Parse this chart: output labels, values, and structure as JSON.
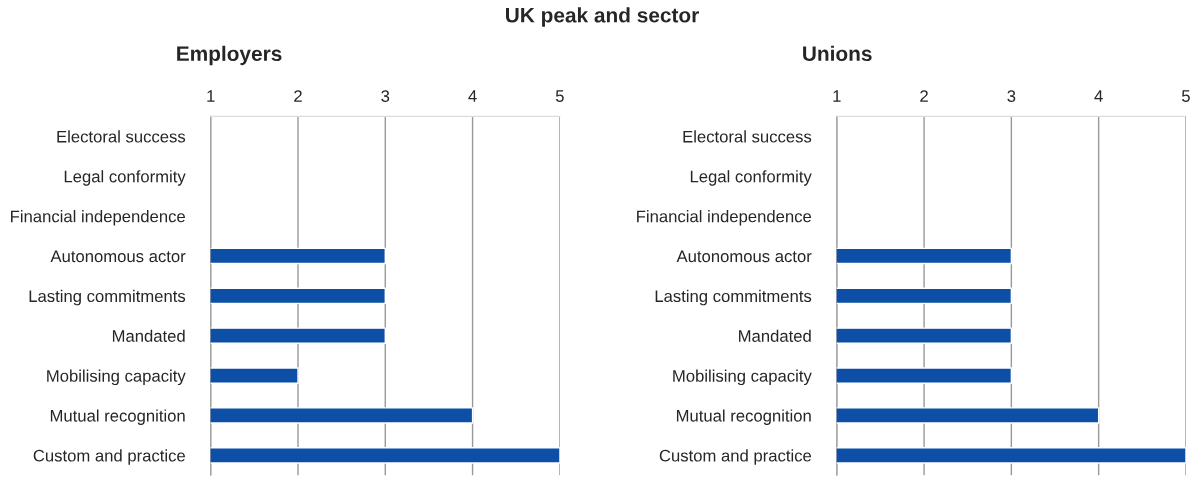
{
  "chart_data": [
    {
      "type": "bar",
      "orientation": "horizontal",
      "title": "Employers",
      "subtitle": "UK peak and sector",
      "categories": [
        "Electoral success",
        "Legal conformity",
        "Financial independence",
        "Autonomous actor",
        "Lasting commitments",
        "Mandated",
        "Mobilising capacity",
        "Mutual recognition",
        "Custom and practice"
      ],
      "values": [
        null,
        null,
        null,
        3,
        3,
        3,
        2,
        4,
        5
      ],
      "color": "#0d4ea6",
      "xlim": [
        1,
        5
      ],
      "xticks": [
        1,
        2,
        3,
        4,
        5
      ],
      "grid": "x",
      "legend": false
    },
    {
      "type": "bar",
      "orientation": "horizontal",
      "title": "Unions",
      "categories": [
        "Electoral success",
        "Legal conformity",
        "Financial independence",
        "Autonomous actor",
        "Lasting commitments",
        "Mandated",
        "Mobilising capacity",
        "Mutual recognition",
        "Custom and practice"
      ],
      "values": [
        null,
        null,
        null,
        3,
        3,
        3,
        3,
        4,
        5
      ],
      "color": "#0d4ea6",
      "xlim": [
        1,
        5
      ],
      "xticks": [
        1,
        2,
        3,
        4,
        5
      ],
      "grid": "x",
      "legend": false
    }
  ]
}
